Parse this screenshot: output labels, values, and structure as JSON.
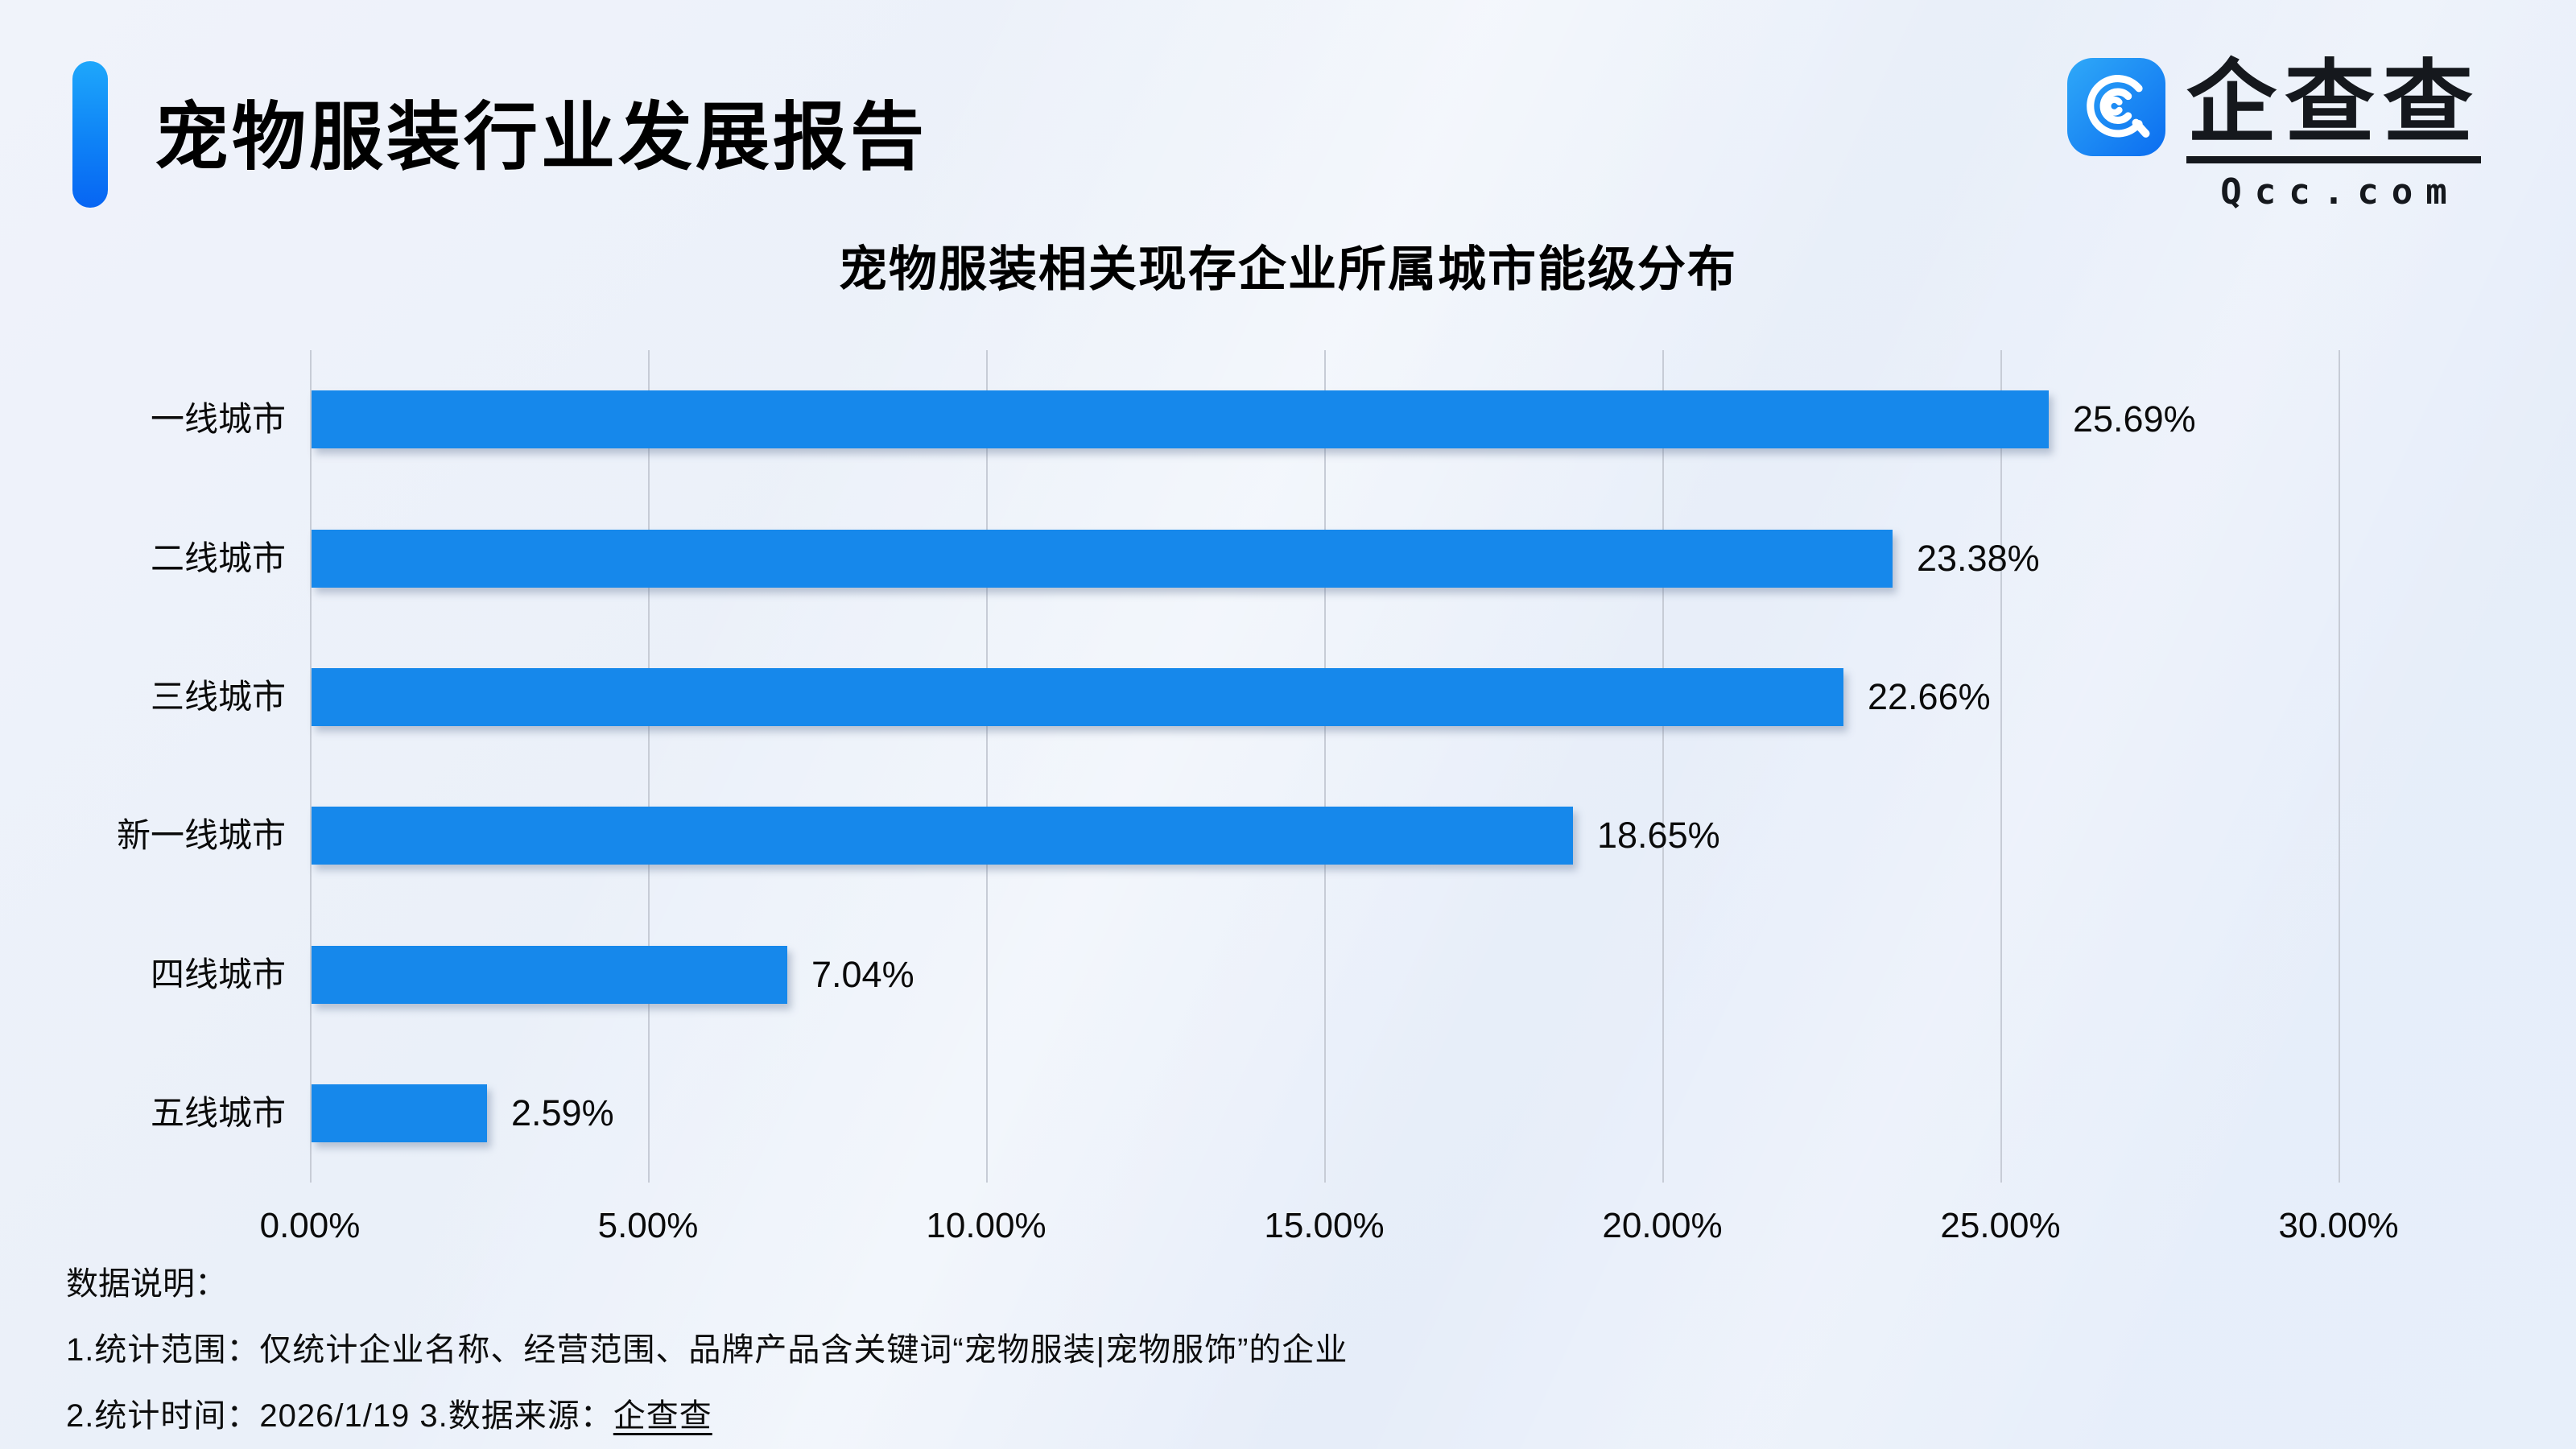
{
  "header": {
    "title": "宠物服装行业发展报告"
  },
  "logo": {
    "name": "企查查",
    "domain": "Qcc.com",
    "icon": "qcc-magnifier-icon",
    "icon_color_top": "#2fa9f8",
    "icon_color_bottom": "#0b6df0"
  },
  "chart_data": {
    "type": "bar",
    "orientation": "horizontal",
    "title": "宠物服装相关现存企业所属城市能级分布",
    "categories": [
      "一线城市",
      "二线城市",
      "三线城市",
      "新一线城市",
      "四线城市",
      "五线城市"
    ],
    "values": [
      25.69,
      23.38,
      22.66,
      18.65,
      7.04,
      2.59
    ],
    "value_labels": [
      "25.69%",
      "23.38%",
      "22.66%",
      "18.65%",
      "7.04%",
      "2.59%"
    ],
    "x_ticks": [
      "0.00%",
      "5.00%",
      "10.00%",
      "15.00%",
      "20.00%",
      "25.00%",
      "30.00%"
    ],
    "xlim": [
      0,
      30
    ],
    "grid": true,
    "legend": "none",
    "bar_color": "#1688eb",
    "gridline_color": "#c7ccd6"
  },
  "notes": {
    "heading": "数据说明：",
    "line1": "1.统计范围：仅统计企业名称、经营范围、品牌产品含关键词“宠物服装|宠物服饰”的企业",
    "line2_prefix": "2.统计时间：2026/1/19  3.数据来源：",
    "line2_source": "企查查"
  }
}
